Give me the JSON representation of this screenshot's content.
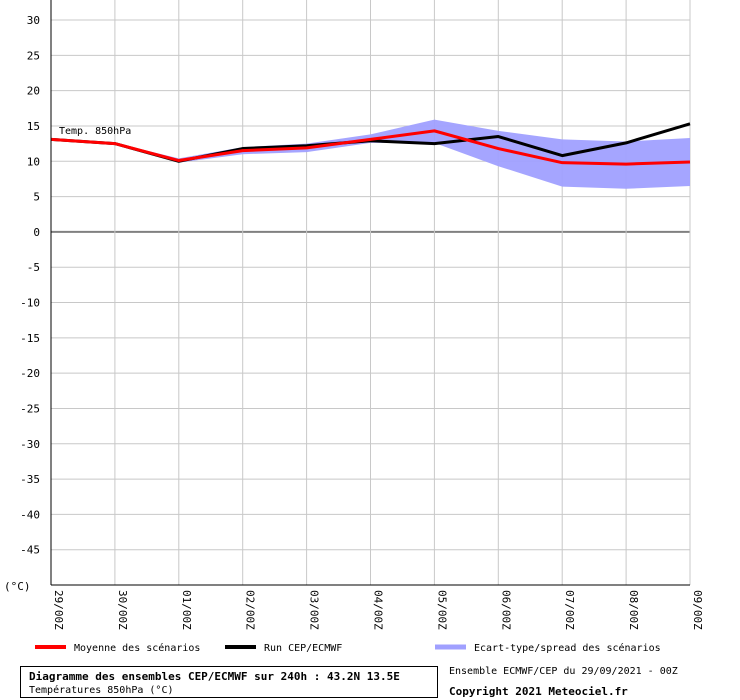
{
  "chart_data": {
    "type": "line",
    "x": [
      "29/00Z",
      "30/00Z",
      "01/00Z",
      "02/00Z",
      "03/00Z",
      "04/00Z",
      "05/00Z",
      "06/00Z",
      "07/00Z",
      "08/00Z",
      "09/00Z"
    ],
    "ylim": [
      -50,
      30
    ],
    "yticks": [
      30,
      25,
      20,
      15,
      10,
      5,
      0,
      -5,
      -10,
      -15,
      -20,
      -25,
      -30,
      -35,
      -40,
      -45
    ],
    "y_unit_label": "(°C)",
    "grid": true,
    "annotation": "Temp. 850hPa",
    "series": [
      {
        "name": "Moyenne des scénarios",
        "color": "#ff0000",
        "values": [
          13.1,
          12.5,
          10.1,
          11.5,
          11.9,
          13.1,
          14.3,
          11.8,
          9.8,
          9.6,
          9.9
        ]
      },
      {
        "name": "Run CEP/ECMWF",
        "color": "#000000",
        "values": [
          13.1,
          12.5,
          10.0,
          11.8,
          12.2,
          12.9,
          12.5,
          13.5,
          10.8,
          12.6,
          15.3
        ]
      },
      {
        "name": "Ecart-type/spread des scénarios",
        "color": "#a0a0ff",
        "type": "band",
        "lower": [
          13.0,
          12.4,
          9.8,
          11.0,
          11.3,
          12.6,
          12.6,
          9.3,
          6.4,
          6.1,
          6.5
        ],
        "upper": [
          13.2,
          12.6,
          10.4,
          12.0,
          12.5,
          13.8,
          15.9,
          14.3,
          13.1,
          12.8,
          13.3
        ]
      }
    ]
  },
  "legend": {
    "mean_label": "Moyenne des scénarios",
    "run_label": "Run CEP/ECMWF",
    "spread_label": "Ecart-type/spread des scénarios"
  },
  "caption": {
    "title": "Diagramme des ensembles CEP/ECMWF sur 240h : 43.2N 13.5E",
    "subtitle": "Températures 850hPa (°C)"
  },
  "footer": {
    "run_info": "Ensemble ECMWF/CEP du 29/09/2021 - 00Z",
    "copyright": "Copyright 2021 Meteociel.fr"
  }
}
